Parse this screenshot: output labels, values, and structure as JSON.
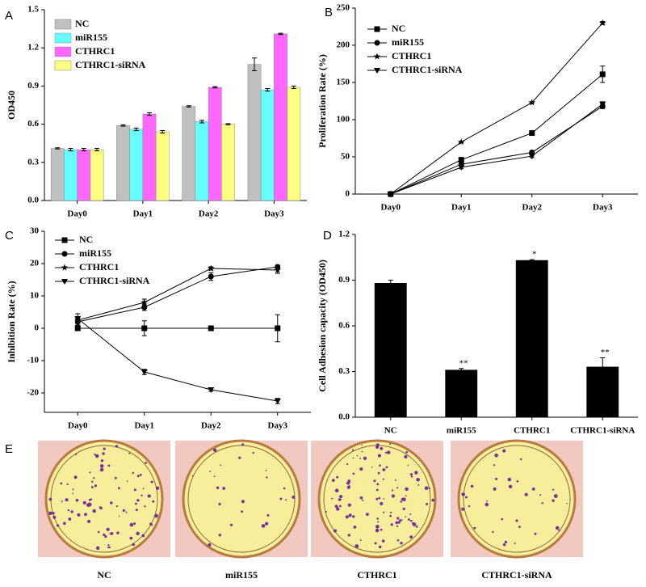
{
  "chart_data": [
    {
      "panel": "A",
      "type": "bar",
      "ylabel": "OD450",
      "categories": [
        "Day0",
        "Day1",
        "Day2",
        "Day3"
      ],
      "series": [
        {
          "name": "NC",
          "color": "#c0c0c0",
          "values": [
            0.41,
            0.59,
            0.74,
            1.07
          ],
          "errors": [
            0.005,
            0.005,
            0.005,
            0.05
          ]
        },
        {
          "name": "miR155",
          "color": "#66ffff",
          "values": [
            0.4,
            0.56,
            0.62,
            0.87
          ],
          "errors": [
            0.01,
            0.01,
            0.01,
            0.01
          ]
        },
        {
          "name": "CTHRC1",
          "color": "#ff66ff",
          "values": [
            0.4,
            0.68,
            0.89,
            1.31
          ],
          "errors": [
            0.01,
            0.01,
            0.005,
            0.005
          ]
        },
        {
          "name": "CTHRC1-siRNA",
          "color": "#ffff80",
          "values": [
            0.4,
            0.54,
            0.6,
            0.89
          ],
          "errors": [
            0.01,
            0.01,
            0.005,
            0.01
          ]
        }
      ],
      "ylim": [
        0,
        1.5
      ],
      "yticks": [
        {
          "value": 0,
          "label": "0.0"
        },
        0.3,
        0.6,
        0.9,
        1.2,
        1.5
      ]
    },
    {
      "panel": "B",
      "type": "line",
      "ylabel": "Proliferation Rate (%)",
      "categories": [
        "Day0",
        "Day1",
        "Day2",
        "Day3"
      ],
      "series": [
        {
          "name": "NC",
          "color": "#000000",
          "marker": "square",
          "values": [
            0,
            46,
            82,
            161
          ],
          "errors": [
            1,
            2,
            2,
            11
          ]
        },
        {
          "name": "miR155",
          "color": "#000000",
          "marker": "circle",
          "values": [
            0,
            40,
            56,
            118
          ],
          "errors": [
            1,
            2,
            2,
            3
          ]
        },
        {
          "name": "CTHRC1",
          "color": "#000000",
          "marker": "star",
          "values": [
            0,
            70,
            123,
            230
          ],
          "errors": [
            1,
            1,
            1,
            2
          ]
        },
        {
          "name": "CTHRC1-siRNA",
          "color": "#000000",
          "marker": "triangle",
          "values": [
            0,
            36,
            51,
            121
          ],
          "errors": [
            1,
            2,
            2,
            3
          ]
        }
      ],
      "ylim": [
        0,
        250
      ],
      "yticks": [
        0,
        50,
        100,
        150,
        200,
        250
      ]
    },
    {
      "panel": "C",
      "type": "line",
      "ylabel": "Inhibition Rate (%)",
      "categories": [
        "Day0",
        "Day1",
        "Day2",
        "Day3"
      ],
      "series": [
        {
          "name": "NC",
          "color": "#000000",
          "marker": "square",
          "values": [
            0,
            0,
            0,
            0
          ],
          "errors": [
            0.6,
            2.3,
            0.3,
            4.2
          ]
        },
        {
          "name": "miR155",
          "color": "#000000",
          "marker": "circle",
          "values": [
            2,
            6.5,
            16,
            19
          ],
          "errors": [
            1,
            1,
            1.2,
            0.5
          ]
        },
        {
          "name": "CTHRC1",
          "color": "#000000",
          "marker": "star",
          "values": [
            2.5,
            8,
            18.5,
            18
          ],
          "errors": [
            1,
            1,
            0.5,
            1
          ]
        },
        {
          "name": "CTHRC1-siRNA",
          "color": "#000000",
          "marker": "triangle",
          "values": [
            3,
            -13.5,
            -19,
            -22.5
          ],
          "errors": [
            1.5,
            0.8,
            0.5,
            0.8
          ]
        }
      ],
      "ylim": [
        -26,
        30
      ],
      "yticks": [
        -20,
        -10,
        0,
        10,
        20,
        30
      ]
    },
    {
      "panel": "D",
      "type": "bar",
      "ylabel": "Cell Adhesion capacity (OD450)",
      "categories": [
        "NC",
        "miR155",
        "CTHRC1",
        "CTHRC1-siRNA"
      ],
      "series": [
        {
          "color": "#000000",
          "values": [
            0.88,
            0.31,
            1.03,
            0.33
          ],
          "errors": [
            0.02,
            0.01,
            0.005,
            0.06
          ]
        }
      ],
      "annotations": [
        null,
        "**",
        "*",
        "**"
      ],
      "ylim": [
        0,
        1.2
      ],
      "yticks": [
        {
          "value": 0,
          "label": "0.0"
        },
        0.3,
        0.6,
        0.9,
        1.2
      ]
    }
  ],
  "panel_e": {
    "label": "E",
    "images": [
      "NC",
      "miR155",
      "CTHRC1",
      "CTHRC1-siRNA"
    ]
  }
}
